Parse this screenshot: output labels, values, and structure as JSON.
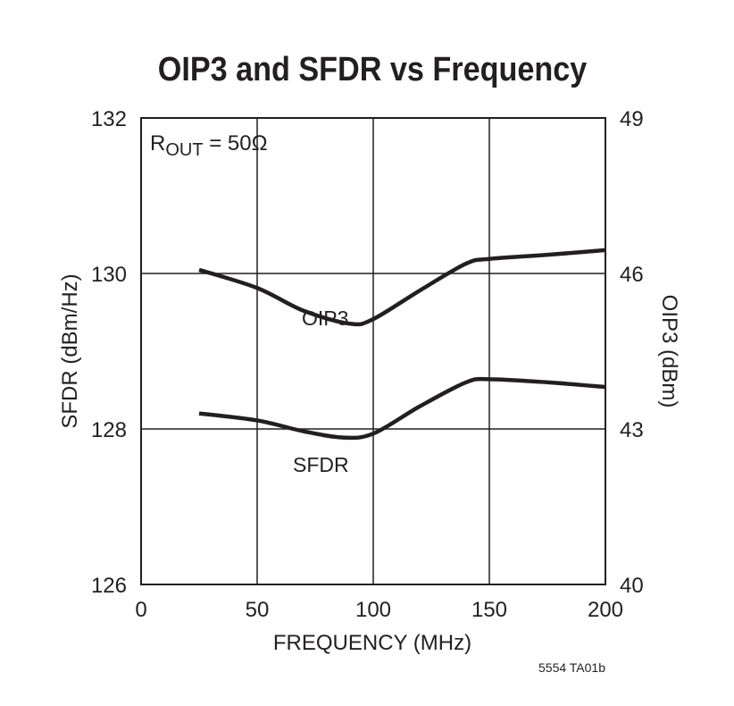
{
  "chart_data": {
    "type": "line",
    "title": "OIP3 and SFDR vs Frequency",
    "xlabel": "FREQUENCY (MHz)",
    "ylabel_left": "SFDR (dBm/Hz)",
    "ylabel_right": "OIP3 (dBm)",
    "xlim": [
      0,
      200
    ],
    "ylim_left": [
      126,
      132
    ],
    "ylim_right": [
      40,
      49
    ],
    "x_ticks": [
      "0",
      "50",
      "100",
      "150",
      "200"
    ],
    "y_ticks_left": [
      "126",
      "128",
      "130",
      "132"
    ],
    "y_ticks_right": [
      "40",
      "43",
      "46",
      "49"
    ],
    "grid": true,
    "annotation": {
      "r": "R",
      "sub": "OUT",
      "rest": " = 50Ω"
    },
    "footnote": "5554 TA01b",
    "series": [
      {
        "name": "OIP3",
        "axis": "right",
        "x": [
          25,
          50,
          70,
          90,
          100,
          120,
          140,
          150,
          175,
          200
        ],
        "y": [
          46.07,
          45.72,
          45.28,
          45.03,
          45.12,
          45.67,
          46.19,
          46.28,
          46.36,
          46.45
        ]
      },
      {
        "name": "SFDR",
        "axis": "left",
        "x": [
          25,
          50,
          70,
          87,
          100,
          120,
          140,
          150,
          175,
          200
        ],
        "y": [
          128.2,
          128.11,
          127.97,
          127.89,
          127.94,
          128.29,
          128.6,
          128.64,
          128.6,
          128.54
        ]
      }
    ]
  }
}
